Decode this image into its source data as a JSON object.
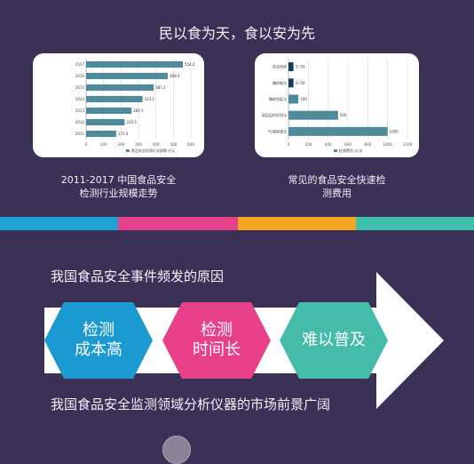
{
  "page": {
    "title": "民以食为天，食以安为先",
    "cause_heading": "我国食品安全事件频发的原因",
    "market_heading": "我国食品安全监测领域分析仪器的市场前景广阔"
  },
  "captions": {
    "left_line1": "2011-2017 中国食品安全",
    "left_line2": "检测行业规模走势",
    "right_line1": "常见的食品安全快速检",
    "right_line2": "测费用"
  },
  "strip_colors": [
    "#1ea3d6",
    "#e6418b",
    "#f5a623",
    "#3dbfa9"
  ],
  "reasons": [
    {
      "line1": "检测",
      "line2": "成本高",
      "color": "#1b9ad2"
    },
    {
      "line1": "检测",
      "line2": "时间长",
      "color": "#e8418a"
    },
    {
      "line1": "难以普及",
      "line2": "",
      "color": "#44bca9"
    }
  ],
  "chart_data": [
    {
      "type": "bar",
      "orientation": "horizontal",
      "categories": [
        "2017",
        "2016",
        "2015",
        "2014",
        "2013",
        "2012",
        "2011"
      ],
      "values": [
        554.2,
        468.4,
        387.2,
        323.1,
        260.1,
        220.5,
        172.4
      ],
      "xlim": [
        0,
        600
      ],
      "xticks": [
        0,
        100,
        200,
        300,
        400,
        500,
        600
      ],
      "legend": "食品安全检测行业规模  亿元",
      "bar_color": "#4f8a9a"
    },
    {
      "type": "bar",
      "orientation": "horizontal",
      "categories": [
        "农化残测",
        "酶抑制法",
        "酶联免疫法",
        "离层层析检测法",
        "气/液质谱法"
      ],
      "values": [
        50,
        50,
        100,
        500,
        1000
      ],
      "value_labels": [
        "3~50",
        "3~50",
        "100",
        "500",
        "1000"
      ],
      "xlim": [
        0,
        1200
      ],
      "xticks": [
        0,
        200,
        400,
        600,
        800,
        1000,
        1200
      ],
      "legend": "检测费用  元/次",
      "colors": [
        "#123d5a",
        "#123d5a",
        "#4f8a9a",
        "#4f8a9a",
        "#4f8a9a"
      ]
    }
  ]
}
